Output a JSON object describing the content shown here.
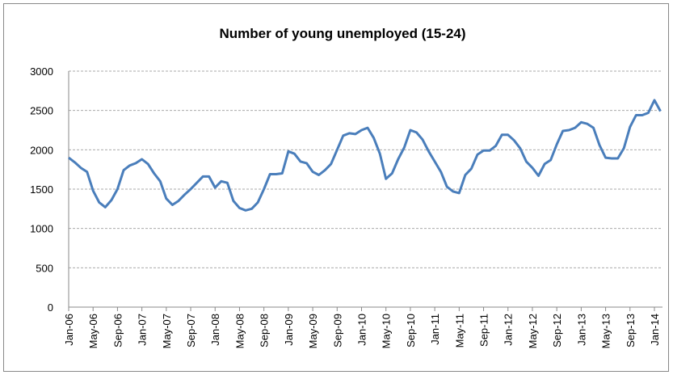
{
  "chart_data": {
    "type": "line",
    "title": "Number of young unemployed (15-24)",
    "categories": [
      "Jan-06",
      null,
      null,
      null,
      "May-06",
      null,
      null,
      null,
      "Sep-06",
      null,
      null,
      null,
      "Jan-07",
      null,
      null,
      null,
      "May-07",
      null,
      null,
      null,
      "Sep-07",
      null,
      null,
      null,
      "Jan-08",
      null,
      null,
      null,
      "May-08",
      null,
      null,
      null,
      "Sep-08",
      null,
      null,
      null,
      "Jan-09",
      null,
      null,
      null,
      "May-09",
      null,
      null,
      null,
      "Sep-09",
      null,
      null,
      null,
      "Jan-10",
      null,
      null,
      null,
      "May-10",
      null,
      null,
      null,
      "Sep-10",
      null,
      null,
      null,
      "Jan-11",
      null,
      null,
      null,
      "May-11",
      null,
      null,
      null,
      "Sep-11",
      null,
      null,
      null,
      "Jan-12",
      null,
      null,
      null,
      "May-12",
      null,
      null,
      null,
      "Sep-12",
      null,
      null,
      null,
      "Jan-13",
      null,
      null,
      null,
      "May-13",
      null,
      null,
      null,
      "Sep-13",
      null,
      null,
      null,
      "Jan-14",
      null
    ],
    "values": [
      1900,
      1840,
      1770,
      1720,
      1480,
      1330,
      1270,
      1360,
      1500,
      1740,
      1800,
      1830,
      1880,
      1820,
      1700,
      1600,
      1380,
      1300,
      1350,
      1430,
      1500,
      1580,
      1660,
      1660,
      1520,
      1600,
      1580,
      1350,
      1260,
      1230,
      1250,
      1330,
      1500,
      1690,
      1690,
      1700,
      1980,
      1950,
      1850,
      1830,
      1720,
      1680,
      1740,
      1820,
      2000,
      2180,
      2210,
      2200,
      2250,
      2280,
      2150,
      1950,
      1630,
      1700,
      1880,
      2030,
      2250,
      2220,
      2130,
      1980,
      1850,
      1720,
      1530,
      1470,
      1450,
      1680,
      1760,
      1940,
      1990,
      1990,
      2050,
      2190,
      2190,
      2120,
      2020,
      1850,
      1770,
      1670,
      1820,
      1870,
      2070,
      2240,
      2250,
      2280,
      2350,
      2330,
      2280,
      2060,
      1900,
      1890,
      1890,
      2020,
      2290,
      2440,
      2440,
      2470,
      2630,
      2490
    ],
    "color": "#4a7ebb",
    "ylim": [
      0,
      3000
    ],
    "yticks": [
      0,
      500,
      1000,
      1500,
      2000,
      2500,
      3000
    ],
    "grid": true
  }
}
